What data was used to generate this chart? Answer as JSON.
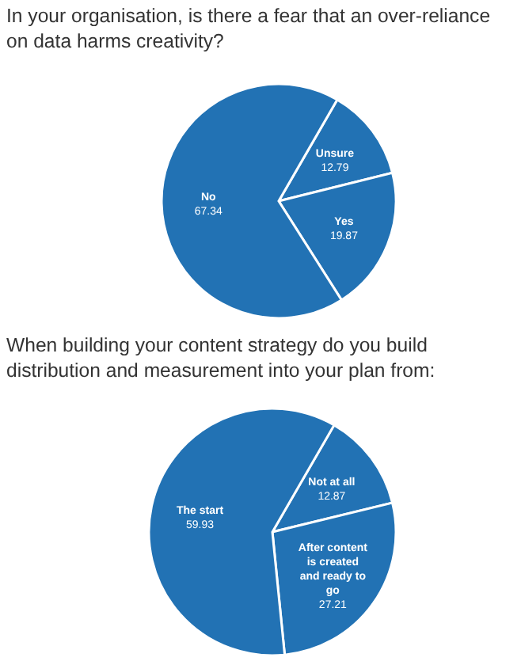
{
  "chart_data": [
    {
      "type": "pie",
      "title": "In your organisation, is there a fear that an over-reliance on data harms creativity?",
      "categories": [
        "Unsure",
        "Yes",
        "No"
      ],
      "values": [
        12.79,
        19.87,
        67.34
      ],
      "colors": [
        "#2272b4",
        "#2272b4",
        "#2272b4"
      ],
      "data_labels": true
    },
    {
      "type": "pie",
      "title": "When building your content strategy do you build distribution and measurement into your plan from:",
      "categories": [
        "Not at all",
        "After content is created and ready to go",
        "The start"
      ],
      "values": [
        12.87,
        27.21,
        59.93
      ],
      "colors": [
        "#2272b4",
        "#2272b4",
        "#2272b4"
      ],
      "data_labels": true
    }
  ]
}
